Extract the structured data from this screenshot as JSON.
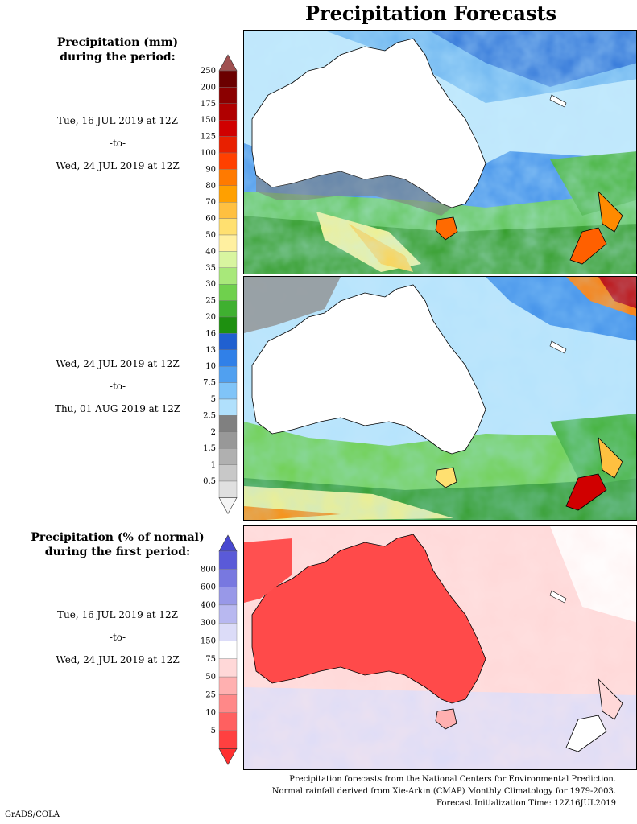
{
  "title": "Precipitation Forecasts",
  "section1": {
    "heading_line1": "Precipitation (mm)",
    "heading_line2": "during the period:",
    "period1": {
      "start": "Tue, 16 JUL 2019 at 12Z",
      "sep": "-to-",
      "end": "Wed, 24 JUL 2019 at 12Z"
    },
    "period2": {
      "start": "Wed, 24 JUL 2019 at 12Z",
      "sep": "-to-",
      "end": "Thu, 01 AUG 2019 at 12Z"
    },
    "colorbar": {
      "labels": [
        "250",
        "200",
        "175",
        "150",
        "125",
        "100",
        "90",
        "80",
        "70",
        "60",
        "50",
        "40",
        "35",
        "30",
        "25",
        "20",
        "16",
        "13",
        "10",
        "7.5",
        "5",
        "2.5",
        "2",
        "1.5",
        "1",
        "0.5"
      ],
      "colors": [
        "#6b0000",
        "#8b0000",
        "#b00000",
        "#d00000",
        "#e82000",
        "#ff4000",
        "#ff7a00",
        "#ffa000",
        "#ffc040",
        "#ffe070",
        "#fff0a0",
        "#d8f5a0",
        "#a8e87a",
        "#6fd04d",
        "#3fb030",
        "#1e9010",
        "#2060d0",
        "#3080e8",
        "#50a0f0",
        "#80c4f8",
        "#b0e0fc",
        "#808080",
        "#989898",
        "#b0b0b0",
        "#c8c8c8",
        "#e0e0e0"
      ],
      "top_arrow_color": "#a05050",
      "bottom_arrow_color": "#f5f5f5"
    }
  },
  "section2": {
    "heading_line1": "Precipitation (% of normal)",
    "heading_line2": "during the first period:",
    "period": {
      "start": "Tue, 16 JUL 2019 at 12Z",
      "sep": "-to-",
      "end": "Wed, 24 JUL 2019 at 12Z"
    },
    "colorbar": {
      "labels": [
        "800",
        "600",
        "400",
        "300",
        "150",
        "75",
        "50",
        "25",
        "10",
        "5"
      ],
      "colors": [
        "#5a5ad8",
        "#7878e0",
        "#9898e8",
        "#b8b8f0",
        "#dcdcf8",
        "#ffffff",
        "#ffd8d8",
        "#ffb0b0",
        "#ff8888",
        "#ff6060",
        "#ff4040"
      ],
      "top_arrow_color": "#4848d0",
      "bottom_arrow_color": "#ff3030"
    }
  },
  "footer": {
    "line1": "Precipitation forecasts from the National Centers for Environmental Prediction.",
    "line2": "Normal rainfall derived from Xie-Arkin (CMAP) Monthly Climatology for 1979-2003.",
    "line3": "Forecast Initialization Time: 12Z16JUL2019"
  },
  "credit": "GrADS/COLA"
}
